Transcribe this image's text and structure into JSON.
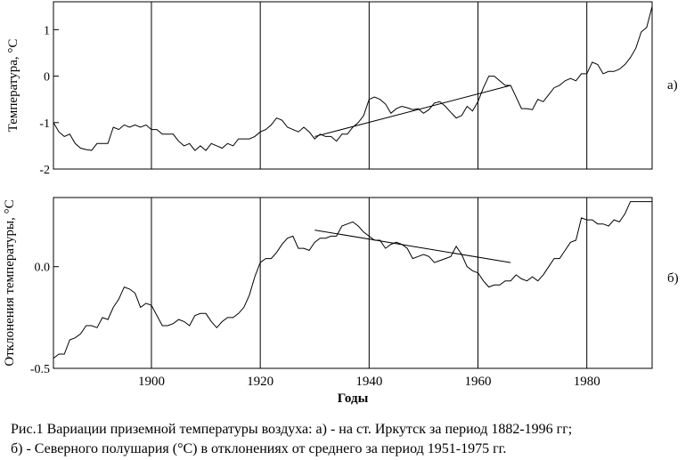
{
  "x_ticks": [
    1900,
    1920,
    1940,
    1960,
    1980
  ],
  "xlabel": "Годы",
  "chart_data": [
    {
      "type": "line",
      "panel_label": "а)",
      "ylabel": "Температура, °С",
      "ylim": [
        -2,
        1.6
      ],
      "xlim": [
        1882,
        1992
      ],
      "y_ticks": [
        {
          "value": 1,
          "label": "1"
        },
        {
          "value": 0,
          "label": "0"
        },
        {
          "value": -1,
          "label": "-1"
        },
        {
          "value": -2,
          "label": "-2"
        }
      ],
      "vertical_gridlines": [
        1900,
        1920,
        1940,
        1960,
        1980
      ],
      "grid": "vertical only",
      "series": [
        {
          "x": [
            1882,
            1883,
            1884,
            1885,
            1886,
            1887,
            1888,
            1889,
            1890,
            1891,
            1892,
            1893,
            1894,
            1895,
            1896,
            1897,
            1898,
            1899,
            1900,
            1901,
            1902,
            1903,
            1904,
            1905,
            1906,
            1907,
            1908,
            1909,
            1910,
            1911,
            1912,
            1913,
            1914,
            1915,
            1916,
            1917,
            1918,
            1919,
            1920,
            1921,
            1922,
            1923,
            1924,
            1925,
            1926,
            1927,
            1928,
            1929,
            1930,
            1931,
            1932,
            1933,
            1934,
            1935,
            1936,
            1937,
            1938,
            1939,
            1940,
            1941,
            1942,
            1943,
            1944,
            1945,
            1946,
            1947,
            1948,
            1949,
            1950,
            1951,
            1952,
            1953,
            1954,
            1955,
            1956,
            1957,
            1958,
            1959,
            1960,
            1961,
            1962,
            1963,
            1964,
            1965,
            1966,
            1967,
            1968,
            1969,
            1970,
            1971,
            1972,
            1973,
            1974,
            1975,
            1976,
            1977,
            1978,
            1979,
            1980,
            1981,
            1982,
            1983,
            1984,
            1985,
            1986,
            1987,
            1988,
            1989,
            1990,
            1991,
            1992
          ],
          "y": [
            -1.0,
            -1.2,
            -1.3,
            -1.25,
            -1.45,
            -1.55,
            -1.58,
            -1.6,
            -1.45,
            -1.45,
            -1.45,
            -1.1,
            -1.15,
            -1.05,
            -1.1,
            -1.05,
            -1.1,
            -1.05,
            -1.15,
            -1.15,
            -1.25,
            -1.25,
            -1.25,
            -1.4,
            -1.5,
            -1.45,
            -1.6,
            -1.5,
            -1.6,
            -1.45,
            -1.5,
            -1.55,
            -1.45,
            -1.5,
            -1.35,
            -1.35,
            -1.35,
            -1.3,
            -1.2,
            -1.15,
            -1.05,
            -0.9,
            -0.95,
            -1.1,
            -1.15,
            -1.2,
            -1.1,
            -1.2,
            -1.35,
            -1.25,
            -1.3,
            -1.3,
            -1.4,
            -1.25,
            -1.25,
            -1.1,
            -1.0,
            -0.85,
            -0.5,
            -0.45,
            -0.5,
            -0.6,
            -0.8,
            -0.7,
            -0.65,
            -0.68,
            -0.72,
            -0.7,
            -0.8,
            -0.72,
            -0.58,
            -0.55,
            -0.65,
            -0.78,
            -0.9,
            -0.85,
            -0.65,
            -0.75,
            -0.55,
            -0.25,
            0.0,
            0.0,
            -0.1,
            -0.2,
            -0.2,
            -0.45,
            -0.7,
            -0.7,
            -0.72,
            -0.5,
            -0.55,
            -0.4,
            -0.25,
            -0.2,
            -0.1,
            -0.05,
            -0.1,
            0.05,
            0.05,
            0.3,
            0.25,
            0.05,
            0.1,
            0.1,
            0.15,
            0.25,
            0.4,
            0.6,
            0.95,
            1.05,
            1.5
          ]
        }
      ],
      "trend_line": {
        "x": [
          1930,
          1966
        ],
        "y": [
          -1.3,
          -0.2
        ]
      }
    },
    {
      "type": "line",
      "panel_label": "б)",
      "ylabel": "Отклонения температуры, °С",
      "ylim": [
        -0.5,
        0.34
      ],
      "xlim": [
        1882,
        1992
      ],
      "y_ticks": [
        {
          "value": 0.0,
          "label": "0.0"
        },
        {
          "value": -0.5,
          "label": "-0.5"
        }
      ],
      "vertical_gridlines": [
        1900,
        1920,
        1940,
        1960,
        1980
      ],
      "grid": "vertical only",
      "series": [
        {
          "x": [
            1882,
            1883,
            1884,
            1885,
            1886,
            1887,
            1888,
            1889,
            1890,
            1891,
            1892,
            1893,
            1894,
            1895,
            1896,
            1897,
            1898,
            1899,
            1900,
            1901,
            1902,
            1903,
            1904,
            1905,
            1906,
            1907,
            1908,
            1909,
            1910,
            1911,
            1912,
            1913,
            1914,
            1915,
            1916,
            1917,
            1918,
            1919,
            1920,
            1921,
            1922,
            1923,
            1924,
            1925,
            1926,
            1927,
            1928,
            1929,
            1930,
            1931,
            1932,
            1933,
            1934,
            1935,
            1936,
            1937,
            1938,
            1939,
            1940,
            1941,
            1942,
            1943,
            1944,
            1945,
            1946,
            1947,
            1948,
            1949,
            1950,
            1951,
            1952,
            1953,
            1954,
            1955,
            1956,
            1957,
            1958,
            1959,
            1960,
            1961,
            1962,
            1963,
            1964,
            1965,
            1966,
            1967,
            1968,
            1969,
            1970,
            1971,
            1972,
            1973,
            1974,
            1975,
            1976,
            1977,
            1978,
            1979,
            1980,
            1981,
            1982,
            1983,
            1984,
            1985,
            1986,
            1987,
            1988,
            1989,
            1990,
            1991,
            1992
          ],
          "y": [
            -0.45,
            -0.43,
            -0.43,
            -0.36,
            -0.35,
            -0.33,
            -0.29,
            -0.29,
            -0.3,
            -0.25,
            -0.26,
            -0.2,
            -0.16,
            -0.1,
            -0.11,
            -0.13,
            -0.2,
            -0.18,
            -0.19,
            -0.24,
            -0.29,
            -0.29,
            -0.28,
            -0.26,
            -0.27,
            -0.29,
            -0.24,
            -0.23,
            -0.23,
            -0.27,
            -0.3,
            -0.27,
            -0.25,
            -0.25,
            -0.23,
            -0.2,
            -0.14,
            -0.05,
            0.02,
            0.04,
            0.04,
            0.07,
            0.11,
            0.14,
            0.15,
            0.09,
            0.09,
            0.08,
            0.12,
            0.14,
            0.14,
            0.15,
            0.15,
            0.2,
            0.21,
            0.22,
            0.2,
            0.17,
            0.15,
            0.13,
            0.13,
            0.09,
            0.11,
            0.12,
            0.11,
            0.09,
            0.04,
            0.05,
            0.06,
            0.05,
            0.02,
            0.03,
            0.04,
            0.05,
            0.1,
            0.06,
            0.0,
            -0.02,
            -0.03,
            -0.07,
            -0.1,
            -0.09,
            -0.09,
            -0.07,
            -0.07,
            -0.04,
            -0.06,
            -0.07,
            -0.05,
            -0.07,
            -0.04,
            0.0,
            0.04,
            0.04,
            0.08,
            0.12,
            0.13,
            0.24,
            0.23,
            0.23,
            0.21,
            0.21,
            0.2,
            0.23,
            0.22,
            0.26,
            0.32,
            0.32,
            0.32,
            0.32,
            0.32
          ]
        }
      ],
      "trend_line": {
        "x": [
          1930,
          1966
        ],
        "y": [
          0.18,
          0.02
        ]
      }
    }
  ],
  "caption": {
    "line1": "Рис.1   Вариации приземной температуры воздуха: а) - на ст. Иркутск за период 1882-1996 гг;",
    "line2": "б) - Северного полушария (°С) в отклонениях от среднего за период 1951-1975 гг."
  }
}
